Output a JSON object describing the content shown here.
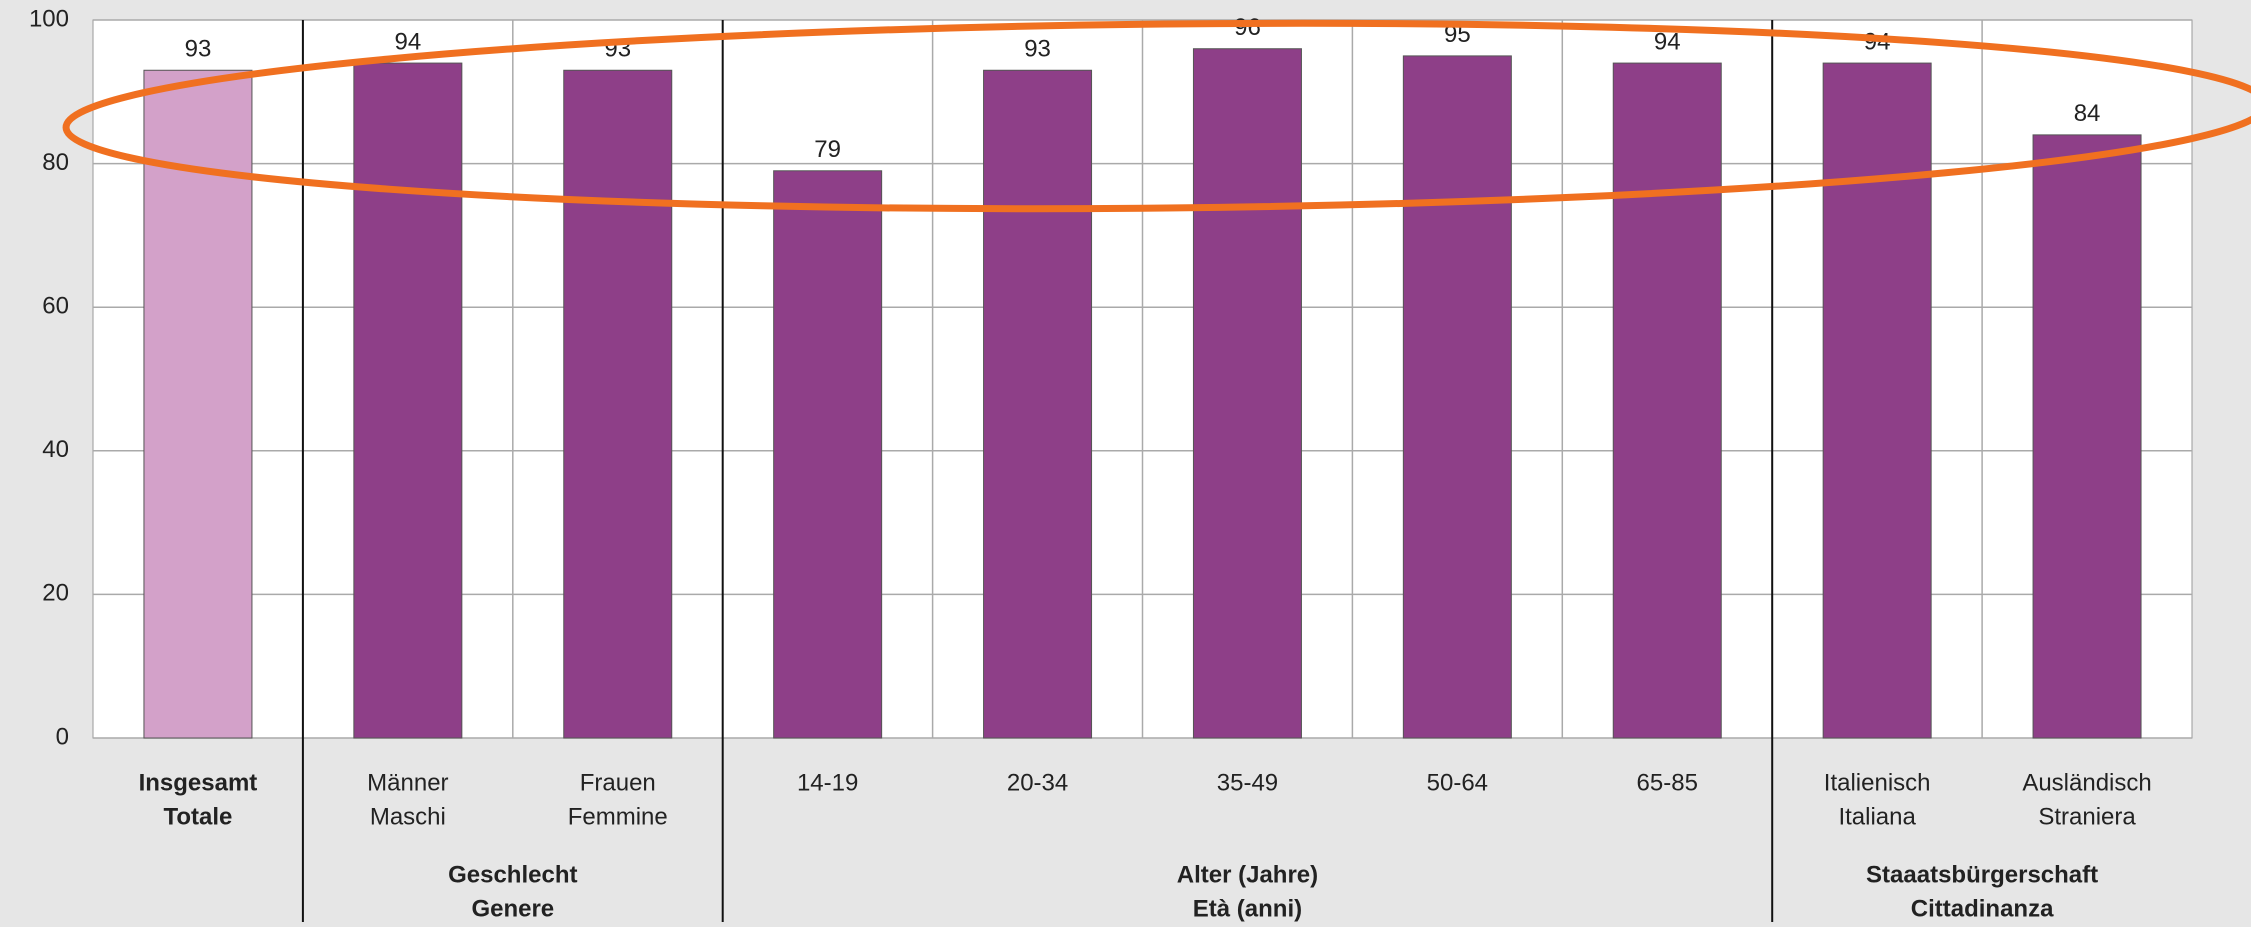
{
  "chart_data": {
    "type": "bar",
    "categories": [
      [
        "Insgesamt",
        "Totale"
      ],
      [
        "Männer",
        "Maschi"
      ],
      [
        "Frauen",
        "Femmine"
      ],
      [
        "14-19"
      ],
      [
        "20-34"
      ],
      [
        "35-49"
      ],
      [
        "50-64"
      ],
      [
        "65-85"
      ],
      [
        "Italienisch",
        "Italiana"
      ],
      [
        "Ausländisch",
        "Straniera"
      ]
    ],
    "bold_categories": [
      0
    ],
    "values": [
      93,
      94,
      93,
      79,
      93,
      96,
      95,
      94,
      94,
      84
    ],
    "colors": [
      "#d3a1c9",
      "#8e3f88",
      "#8e3f88",
      "#8e3f88",
      "#8e3f88",
      "#8e3f88",
      "#8e3f88",
      "#8e3f88",
      "#8e3f88",
      "#8e3f88"
    ],
    "groups": [
      {
        "label": [
          "Geschlecht",
          "Genere"
        ],
        "span": [
          1,
          2
        ]
      },
      {
        "label": [
          "Alter (Jahre)",
          "Età (anni)"
        ],
        "span": [
          3,
          7
        ]
      },
      {
        "label": [
          "Staaatsbürgerschaft",
          "Cittadinanza"
        ],
        "span": [
          8,
          9
        ]
      }
    ],
    "ylim": [
      0,
      100
    ],
    "yticks": [
      0,
      20,
      40,
      60,
      80,
      100
    ],
    "grid": true
  }
}
